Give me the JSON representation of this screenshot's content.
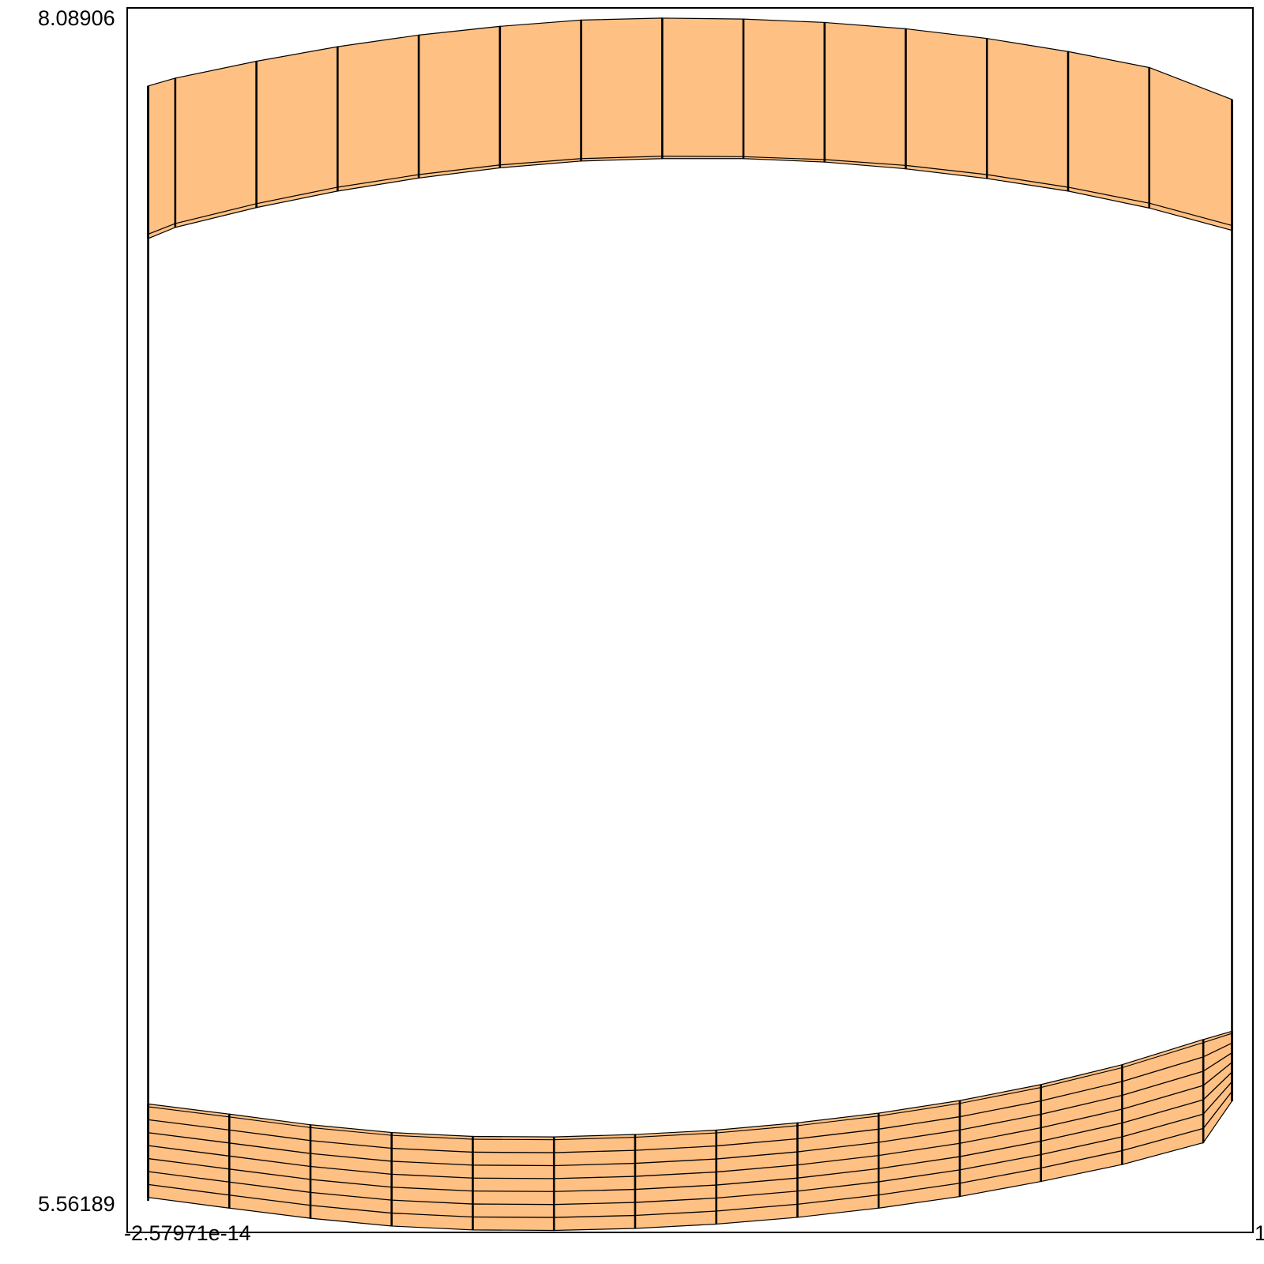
{
  "plot": {
    "frame_color": "#000000",
    "fill_color": "#ffc083",
    "stroke_color": "#000000",
    "x_range": [
      -2.57971e-14,
      1
    ],
    "y_range": [
      5.56189,
      8.08906
    ],
    "axis_labels": {
      "y_max": "8.08906",
      "y_min": "5.56189",
      "x_min": "-2.57971e-14",
      "x_max": "1"
    },
    "vertical_edges": {
      "left_x": 0.0186,
      "left_y_bottom": 5.627,
      "left_y_top": 7.928,
      "right_x": 0.9814,
      "right_y_bottom": 5.833,
      "right_y_top": 7.9
    },
    "top_band": {
      "columns_x": [
        0.0186,
        0.0427,
        0.1148,
        0.1869,
        0.259,
        0.3311,
        0.4032,
        0.4753,
        0.5474,
        0.6195,
        0.6916,
        0.7637,
        0.8358,
        0.9079,
        0.9814
      ],
      "outer_y": [
        7.928,
        7.944,
        7.979,
        8.009,
        8.033,
        8.051,
        8.064,
        8.068,
        8.066,
        8.059,
        8.046,
        8.026,
        7.999,
        7.966,
        7.9
      ],
      "inner_y": [
        7.622,
        7.644,
        7.685,
        7.719,
        7.745,
        7.765,
        7.778,
        7.783,
        7.782,
        7.776,
        7.764,
        7.745,
        7.719,
        7.686,
        7.64
      ],
      "liner_y": [
        7.613,
        7.636,
        7.677,
        7.711,
        7.738,
        7.759,
        7.773,
        7.778,
        7.778,
        7.771,
        7.757,
        7.737,
        7.711,
        7.676,
        7.63
      ]
    },
    "bottom_band": {
      "columns_x": [
        0.0186,
        0.0907,
        0.1628,
        0.2349,
        0.307,
        0.3791,
        0.4512,
        0.5233,
        0.5954,
        0.6675,
        0.7396,
        0.8117,
        0.8838,
        0.9559,
        0.9814
      ],
      "top_y": [
        5.827,
        5.806,
        5.784,
        5.768,
        5.76,
        5.759,
        5.764,
        5.773,
        5.788,
        5.808,
        5.834,
        5.867,
        5.908,
        5.96,
        5.977
      ],
      "bottom_y": [
        5.634,
        5.612,
        5.591,
        5.575,
        5.567,
        5.566,
        5.57,
        5.579,
        5.593,
        5.612,
        5.636,
        5.667,
        5.702,
        5.747,
        5.833
      ],
      "layer_count": 7
    }
  }
}
